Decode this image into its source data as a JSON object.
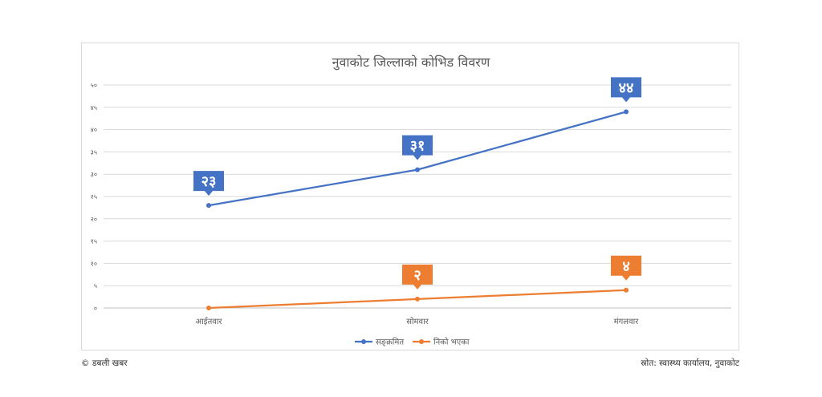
{
  "chart_data": {
    "type": "line",
    "title": "नुवाकोट जिल्लाको कोभिड विवरण",
    "categories": [
      "आईतवार",
      "सोमवार",
      "मंगलवार"
    ],
    "ylim": [
      0,
      50
    ],
    "yticks": [
      "०",
      "५",
      "१०",
      "१५",
      "२०",
      "२५",
      "३०",
      "३५",
      "४०",
      "४५",
      "५०"
    ],
    "grid": true,
    "legend_position": "bottom",
    "series": [
      {
        "name": "सङ्क्रमित",
        "values": [
          23,
          31,
          44
        ],
        "data_labels": [
          "२३",
          "३१",
          "४४"
        ],
        "color": "#4472c4"
      },
      {
        "name": "निको भएका",
        "values": [
          0,
          2,
          4
        ],
        "data_labels": [
          "",
          "२",
          "४"
        ],
        "color": "#ed7d31"
      }
    ]
  },
  "footer": {
    "credit": "© डबली खबर",
    "source": "स्रोत: स्वास्थ्य कार्यालय, नुवाकोट"
  }
}
